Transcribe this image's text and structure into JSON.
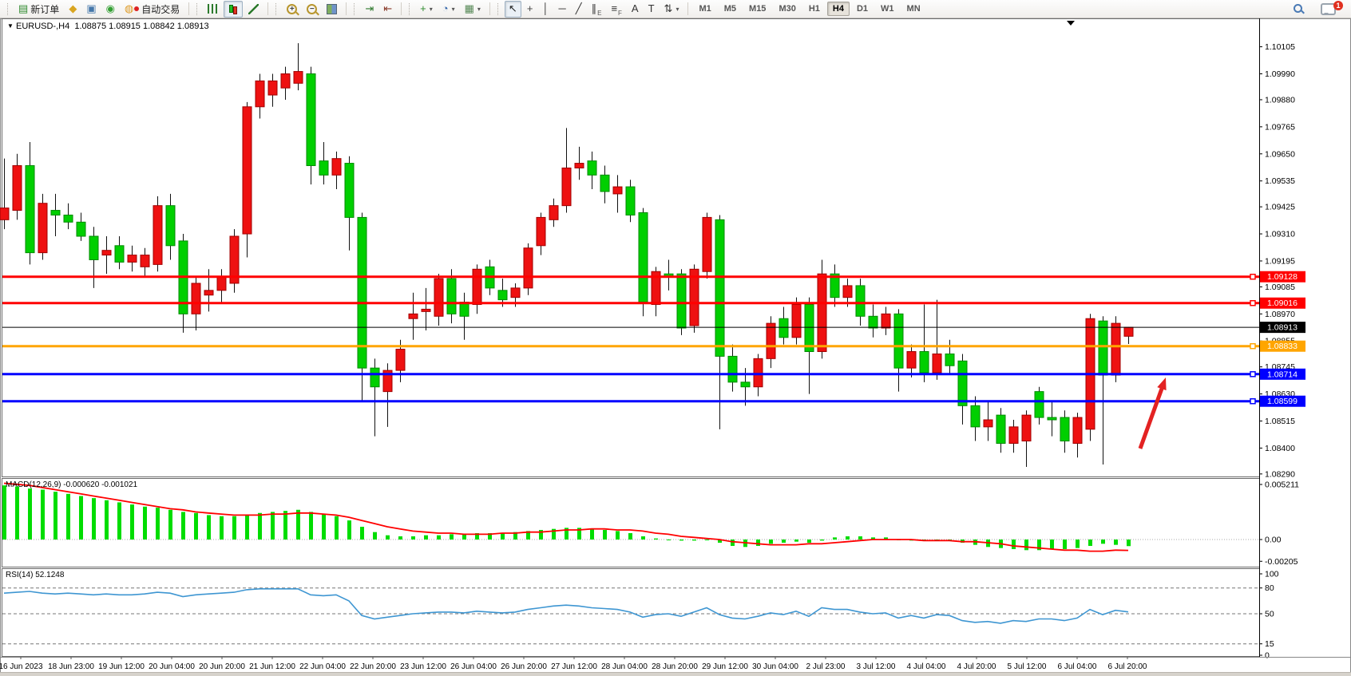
{
  "toolbar": {
    "groups": [
      {
        "name": "trade-group",
        "items": [
          {
            "name": "new-order-button",
            "icon": "new-order-icon",
            "glyph": "▤",
            "color": "#2e8b2e",
            "label": "新订单"
          },
          {
            "name": "gold-button",
            "icon": "gold-box-icon",
            "glyph": "◆",
            "color": "#d9a520"
          },
          {
            "name": "accounts-button",
            "icon": "profile-icon",
            "glyph": "▣",
            "color": "#4477aa"
          },
          {
            "name": "signals-button",
            "icon": "signal-icon",
            "glyph": "◉",
            "color": "#33a033"
          },
          {
            "name": "autotrading-button",
            "icon": "autotrade-icon",
            "glyph": "◍",
            "color": "#dd9922",
            "label": "自动交易",
            "status_dot": "#dd2222"
          }
        ]
      },
      {
        "name": "chart-type-group",
        "items": [
          {
            "name": "bar-chart-button",
            "icon": "bar-chart-icon",
            "iclass": "ic-bars"
          },
          {
            "name": "candlestick-chart-button",
            "icon": "candlestick-chart-icon",
            "iclass": "ic-candles",
            "pressed": true
          },
          {
            "name": "line-chart-button",
            "icon": "line-chart-icon",
            "iclass": "ic-line"
          }
        ]
      },
      {
        "name": "zoom-group",
        "items": [
          {
            "name": "zoom-in-button",
            "icon": "zoom-in-icon",
            "iclass": "ic-zin",
            "glyph": "+"
          },
          {
            "name": "zoom-out-button",
            "icon": "zoom-out-icon",
            "iclass": "ic-zout",
            "glyph": "−"
          },
          {
            "name": "tile-windows-button",
            "icon": "tile-windows-icon",
            "iclass": "ic-tile"
          }
        ]
      },
      {
        "name": "scroll-group",
        "items": [
          {
            "name": "auto-scroll-button",
            "icon": "auto-scroll-icon",
            "glyph": "⇥",
            "color": "#2e7a2e"
          },
          {
            "name": "chart-shift-button",
            "icon": "chart-shift-icon",
            "glyph": "⇤",
            "color": "#8a3a2a"
          }
        ]
      },
      {
        "name": "insert-group",
        "items": [
          {
            "name": "indicators-button",
            "icon": "indicators-icon",
            "glyph": "+",
            "color": "#2e8b2e",
            "dropdown": true
          },
          {
            "name": "periods-button",
            "icon": "clock-icon",
            "glyph": "◔",
            "color": "#3366aa",
            "dropdown": true
          },
          {
            "name": "templates-button",
            "icon": "template-icon",
            "glyph": "▦",
            "color": "#558855",
            "dropdown": true
          }
        ]
      },
      {
        "name": "tools-group",
        "items": [
          {
            "name": "cursor-button",
            "icon": "cursor-icon",
            "glyph": "↖",
            "color": "#222222",
            "pressed": true
          },
          {
            "name": "crosshair-button",
            "icon": "crosshair-icon",
            "glyph": "+",
            "color": "#444444"
          },
          {
            "name": "vertical-line-button",
            "icon": "vertical-line-icon",
            "glyph": "│",
            "color": "#333333"
          },
          {
            "name": "horizontal-line-button",
            "icon": "horizontal-line-icon",
            "glyph": "─",
            "color": "#333333"
          },
          {
            "name": "trendline-button",
            "icon": "trendline-icon",
            "glyph": "╱",
            "color": "#333333"
          },
          {
            "name": "channel-button",
            "icon": "channel-icon",
            "glyph": "∥",
            "sub": "E",
            "color": "#333333"
          },
          {
            "name": "fibonacci-button",
            "icon": "fibonacci-icon",
            "glyph": "≡",
            "sub": "F",
            "color": "#333333"
          },
          {
            "name": "text-button",
            "icon": "text-icon",
            "glyph": "A",
            "color": "#333333"
          },
          {
            "name": "text-label-button",
            "icon": "text-label-icon",
            "glyph": "T",
            "color": "#333333"
          },
          {
            "name": "arrows-button",
            "icon": "arrow-symbols-icon",
            "glyph": "⇅",
            "color": "#333333",
            "dropdown": true
          }
        ]
      }
    ],
    "timeframes": [
      {
        "label": "M1"
      },
      {
        "label": "M5"
      },
      {
        "label": "M15"
      },
      {
        "label": "M30"
      },
      {
        "label": "H1"
      },
      {
        "label": "H4",
        "active": true
      },
      {
        "label": "D1"
      },
      {
        "label": "W1"
      },
      {
        "label": "MN"
      }
    ],
    "notifications": {
      "count": "1"
    }
  },
  "chart": {
    "header": {
      "marker": "▼",
      "symbol": "EURUSD-,H4",
      "quote": "1.08875 1.08915 1.08842 1.08913"
    }
  },
  "chart_data": {
    "type": "candlestick",
    "symbol": "EURUSD-",
    "timeframe": "H4",
    "title": "EURUSD-,H4",
    "last_ohlc": {
      "open": "1.08875",
      "high": "1.08915",
      "low": "1.08842",
      "close": "1.08913"
    },
    "bull_color": "#ee1111",
    "bear_color": "#00cf00",
    "candles": [
      [
        1.0937,
        1.0963,
        1.0933,
        1.0942
      ],
      [
        1.0941,
        1.0965,
        1.0937,
        1.096
      ],
      [
        1.096,
        1.097,
        1.0918,
        1.0923
      ],
      [
        1.0923,
        1.0948,
        1.092,
        1.0944
      ],
      [
        1.0941,
        1.0948,
        1.093,
        1.0939
      ],
      [
        1.0939,
        1.0944,
        1.0933,
        1.0936
      ],
      [
        1.0936,
        1.094,
        1.0928,
        1.093
      ],
      [
        1.093,
        1.0934,
        1.0908,
        1.092
      ],
      [
        1.0922,
        1.093,
        1.0914,
        1.0924
      ],
      [
        1.0926,
        1.093,
        1.0916,
        1.0919
      ],
      [
        1.0919,
        1.0926,
        1.0915,
        1.0922
      ],
      [
        1.0917,
        1.0925,
        1.0913,
        1.0922
      ],
      [
        1.0918,
        1.0947,
        1.0915,
        1.0943
      ],
      [
        1.0943,
        1.0948,
        1.092,
        1.0926
      ],
      [
        1.0928,
        1.0931,
        1.0889,
        1.0897
      ],
      [
        1.0897,
        1.0913,
        1.089,
        1.091
      ],
      [
        1.0905,
        1.0916,
        1.0898,
        1.0907
      ],
      [
        1.0907,
        1.0916,
        1.0902,
        1.0913
      ],
      [
        1.091,
        1.0933,
        1.0906,
        1.093
      ],
      [
        1.0931,
        1.0987,
        1.0921,
        1.0985
      ],
      [
        1.0985,
        1.0999,
        1.098,
        1.0996
      ],
      [
        1.099,
        1.0999,
        1.0985,
        1.0996
      ],
      [
        1.0993,
        1.1002,
        1.0988,
        1.0999
      ],
      [
        1.0995,
        1.1012,
        1.0992,
        1.1
      ],
      [
        1.0999,
        1.1002,
        1.0952,
        1.096
      ],
      [
        1.0962,
        1.097,
        1.0952,
        1.0956
      ],
      [
        1.0956,
        1.0966,
        1.095,
        1.0963
      ],
      [
        1.0961,
        1.0964,
        1.0924,
        1.0938
      ],
      [
        1.0938,
        1.094,
        1.086,
        1.0874
      ],
      [
        1.0874,
        1.0878,
        1.0845,
        1.0866
      ],
      [
        1.0864,
        1.0876,
        1.0849,
        1.0873
      ],
      [
        1.0873,
        1.0886,
        1.0868,
        1.0882
      ],
      [
        1.0895,
        1.0906,
        1.0886,
        1.0897
      ],
      [
        1.0898,
        1.0908,
        1.089,
        1.0899
      ],
      [
        1.0896,
        1.0914,
        1.0892,
        1.0912
      ],
      [
        1.0912,
        1.0916,
        1.0893,
        1.0897
      ],
      [
        1.0902,
        1.0906,
        1.0886,
        1.0896
      ],
      [
        1.0901,
        1.0918,
        1.0897,
        1.0916
      ],
      [
        1.0917,
        1.092,
        1.0905,
        1.0908
      ],
      [
        1.0907,
        1.0912,
        1.09,
        1.0903
      ],
      [
        1.0904,
        1.091,
        1.09,
        1.0908
      ],
      [
        1.0908,
        1.0927,
        1.0905,
        1.0925
      ],
      [
        1.0926,
        1.094,
        1.0922,
        1.0938
      ],
      [
        1.0937,
        1.0946,
        1.0934,
        1.0943
      ],
      [
        1.0943,
        1.0976,
        1.094,
        1.0959
      ],
      [
        1.0959,
        1.0968,
        1.0954,
        1.0961
      ],
      [
        1.0962,
        1.0966,
        1.095,
        1.0956
      ],
      [
        1.0956,
        1.096,
        1.0944,
        1.0949
      ],
      [
        1.0948,
        1.0956,
        1.094,
        1.0951
      ],
      [
        1.0951,
        1.0954,
        1.0936,
        1.0939
      ],
      [
        1.094,
        1.0942,
        1.0896,
        1.0902
      ],
      [
        1.0901,
        1.0917,
        1.0896,
        1.0915
      ],
      [
        1.0914,
        1.092,
        1.0907,
        1.0913
      ],
      [
        1.0914,
        1.0916,
        1.0888,
        1.0891
      ],
      [
        1.0892,
        1.0918,
        1.0889,
        1.0916
      ],
      [
        1.0915,
        1.094,
        1.0912,
        1.0938
      ],
      [
        1.0937,
        1.0939,
        1.0848,
        1.0879
      ],
      [
        1.0879,
        1.0884,
        1.0864,
        1.0868
      ],
      [
        1.0868,
        1.0874,
        1.0858,
        1.0866
      ],
      [
        1.0866,
        1.088,
        1.0862,
        1.0878
      ],
      [
        1.0878,
        1.0896,
        1.0874,
        1.0893
      ],
      [
        1.0895,
        1.09,
        1.0884,
        1.0887
      ],
      [
        1.0887,
        1.0904,
        1.0884,
        1.0901
      ],
      [
        1.0901,
        1.0904,
        1.0863,
        1.0881
      ],
      [
        1.0881,
        1.092,
        1.0878,
        1.0914
      ],
      [
        1.0914,
        1.0918,
        1.09,
        1.0904
      ],
      [
        1.0904,
        1.0912,
        1.09,
        1.0909
      ],
      [
        1.0909,
        1.0912,
        1.0892,
        1.0896
      ],
      [
        1.0896,
        1.0901,
        1.0887,
        1.0891
      ],
      [
        1.0891,
        1.09,
        1.0888,
        1.0897
      ],
      [
        1.0897,
        1.0899,
        1.0864,
        1.0874
      ],
      [
        1.0874,
        1.0884,
        1.087,
        1.0881
      ],
      [
        1.0881,
        1.0901,
        1.0868,
        1.0872
      ],
      [
        1.0872,
        1.0903,
        1.0869,
        1.088
      ],
      [
        1.088,
        1.0886,
        1.0871,
        1.0875
      ],
      [
        1.0877,
        1.088,
        1.085,
        1.0858
      ],
      [
        1.0858,
        1.0862,
        1.0843,
        1.0849
      ],
      [
        1.0849,
        1.086,
        1.0843,
        1.0852
      ],
      [
        1.0854,
        1.0857,
        1.0838,
        1.0842
      ],
      [
        1.0842,
        1.0852,
        1.0838,
        1.0849
      ],
      [
        1.0843,
        1.0856,
        1.0832,
        1.0854
      ],
      [
        1.0864,
        1.0866,
        1.085,
        1.0853
      ],
      [
        1.0853,
        1.086,
        1.0845,
        1.0852
      ],
      [
        1.0853,
        1.0856,
        1.0838,
        1.0843
      ],
      [
        1.0842,
        1.0855,
        1.0836,
        1.0853
      ],
      [
        1.0848,
        1.0897,
        1.0843,
        1.0895
      ],
      [
        1.0894,
        1.0896,
        1.0833,
        1.0871
      ],
      [
        1.0871,
        1.0896,
        1.0868,
        1.0893
      ],
      [
        1.08875,
        1.08915,
        1.08842,
        1.08913
      ]
    ],
    "price_axis": {
      "ticks": [
        "1.10105",
        "1.09990",
        "1.09880",
        "1.09765",
        "1.09650",
        "1.09535",
        "1.09425",
        "1.09310",
        "1.09195",
        "1.09085",
        "1.08970",
        "1.08855",
        "1.08745",
        "1.08630",
        "1.08515",
        "1.08400",
        "1.08290"
      ]
    },
    "levels": [
      {
        "price": "1.09128",
        "value": 1.09128,
        "color": "#ff0000",
        "thickness": 3
      },
      {
        "price": "1.09016",
        "value": 1.09016,
        "color": "#ff0000",
        "thickness": 3
      },
      {
        "price": "1.08833",
        "value": 1.08833,
        "color": "#ffa500",
        "thickness": 3
      },
      {
        "price": "1.08714",
        "value": 1.08714,
        "color": "#0000ff",
        "thickness": 3
      },
      {
        "price": "1.08599",
        "value": 1.08599,
        "color": "#0000ff",
        "thickness": 3
      }
    ],
    "current_price": {
      "label": "1.08913",
      "value": 1.08913,
      "color": "#000000"
    },
    "macd": {
      "label": "MACD(12,26,9) -0.000620 -0.001021",
      "name": "MACD(12,26,9)",
      "value": "-0.000620",
      "signal_value": "-0.001021",
      "axis_ticks": [
        "0.005211",
        "0.00",
        "-0.00205"
      ],
      "axis_values": [
        0.005211,
        0,
        -0.00205
      ],
      "histogram_color": "#00dd00",
      "signal_color": "#ff0000",
      "histogram": [
        0.0051,
        0.005,
        0.0048,
        0.0047,
        0.0045,
        0.0043,
        0.0041,
        0.0039,
        0.0037,
        0.0035,
        0.0033,
        0.0031,
        0.003,
        0.0028,
        0.0026,
        0.0025,
        0.0023,
        0.0022,
        0.0022,
        0.0023,
        0.0025,
        0.0026,
        0.0027,
        0.0028,
        0.0026,
        0.0024,
        0.0022,
        0.0018,
        0.0012,
        0.0007,
        0.0004,
        0.0003,
        0.0003,
        0.0004,
        0.0004,
        0.0005,
        0.0005,
        0.0006,
        0.0006,
        0.0006,
        0.0007,
        0.0008,
        0.0009,
        0.001,
        0.0011,
        0.0011,
        0.001,
        0.0009,
        0.0008,
        0.0006,
        0.0003,
        0.0001,
        0.0,
        -0.0001,
        -0.0001,
        0.0,
        -0.0003,
        -0.0006,
        -0.0007,
        -0.0006,
        -0.0004,
        -0.0003,
        -0.0002,
        -0.0003,
        -0.0001,
        0.0002,
        0.0003,
        0.0003,
        0.0002,
        0.0002,
        0.0,
        -0.0001,
        -0.0001,
        0.0,
        -0.0001,
        -0.0003,
        -0.0005,
        -0.0007,
        -0.0008,
        -0.0009,
        -0.001,
        -0.001,
        -0.0009,
        -0.0009,
        -0.0008,
        -0.0006,
        -0.0004,
        -0.0005,
        -0.00062
      ],
      "signal": [
        0.0053,
        0.0052,
        0.0051,
        0.0049,
        0.0047,
        0.0045,
        0.0043,
        0.0041,
        0.0039,
        0.0037,
        0.0035,
        0.0033,
        0.0031,
        0.0029,
        0.0028,
        0.0026,
        0.0025,
        0.0024,
        0.0023,
        0.0023,
        0.0023,
        0.0024,
        0.0024,
        0.0025,
        0.0025,
        0.0024,
        0.0023,
        0.0021,
        0.0018,
        0.0015,
        0.0012,
        0.001,
        0.0008,
        0.0007,
        0.0006,
        0.0006,
        0.0005,
        0.0005,
        0.0005,
        0.0006,
        0.0006,
        0.0007,
        0.0007,
        0.0008,
        0.0009,
        0.0009,
        0.001,
        0.001,
        0.0009,
        0.0009,
        0.0008,
        0.0006,
        0.0005,
        0.0003,
        0.0002,
        0.0001,
        0.0,
        -0.0002,
        -0.0003,
        -0.0004,
        -0.0005,
        -0.0005,
        -0.0005,
        -0.0004,
        -0.0004,
        -0.0003,
        -0.0002,
        -0.0001,
        0.0,
        0.0,
        0.0,
        0.0,
        -0.0001,
        -0.0001,
        -0.0001,
        -0.0002,
        -0.0002,
        -0.0003,
        -0.0004,
        -0.0006,
        -0.0007,
        -0.0008,
        -0.0009,
        -0.001,
        -0.001,
        -0.0011,
        -0.0011,
        -0.001,
        -0.00102
      ]
    },
    "rsi": {
      "label": "RSI(14) 52.1248",
      "name": "RSI(14)",
      "value": "52.1248",
      "line_color": "#3e96d2",
      "axis_ticks": [
        "100",
        "80",
        "50",
        "15",
        "0"
      ],
      "axis_values": [
        100,
        80,
        50,
        15,
        0
      ],
      "levels": [
        80,
        50,
        15
      ],
      "values": [
        74,
        75,
        76,
        74,
        73,
        74,
        73,
        72,
        73,
        72,
        72,
        73,
        75,
        74,
        70,
        72,
        73,
        74,
        75,
        78,
        79,
        79,
        79,
        79,
        72,
        71,
        72,
        65,
        48,
        44,
        46,
        48,
        50,
        51,
        52,
        52,
        51,
        53,
        52,
        51,
        52,
        55,
        57,
        59,
        60,
        59,
        57,
        56,
        55,
        52,
        46,
        49,
        50,
        47,
        52,
        57,
        49,
        45,
        44,
        47,
        51,
        49,
        53,
        47,
        57,
        55,
        55,
        52,
        50,
        51,
        45,
        48,
        45,
        49,
        48,
        42,
        40,
        41,
        39,
        42,
        41,
        44,
        44,
        42,
        45,
        55,
        49,
        54,
        52.12
      ]
    },
    "time_axis": {
      "labels": [
        "16 Jun 2023",
        "18 Jun 23:00",
        "19 Jun 12:00",
        "20 Jun 04:00",
        "20 Jun 20:00",
        "21 Jun 12:00",
        "22 Jun 04:00",
        "22 Jun 20:00",
        "23 Jun 12:00",
        "26 Jun 04:00",
        "26 Jun 20:00",
        "27 Jun 12:00",
        "28 Jun 04:00",
        "28 Jun 20:00",
        "29 Jun 12:00",
        "30 Jun 04:00",
        "2 Jul 23:00",
        "3 Jul 12:00",
        "4 Jul 04:00",
        "4 Jul 20:00",
        "5 Jul 12:00",
        "6 Jul 04:00",
        "6 Jul 20:00"
      ]
    },
    "annotations": [
      {
        "name": "red-up-arrow",
        "type": "arrow",
        "color": "#e32222",
        "from": [
          1428,
          539
        ],
        "to": [
          1460,
          450
        ]
      }
    ]
  }
}
